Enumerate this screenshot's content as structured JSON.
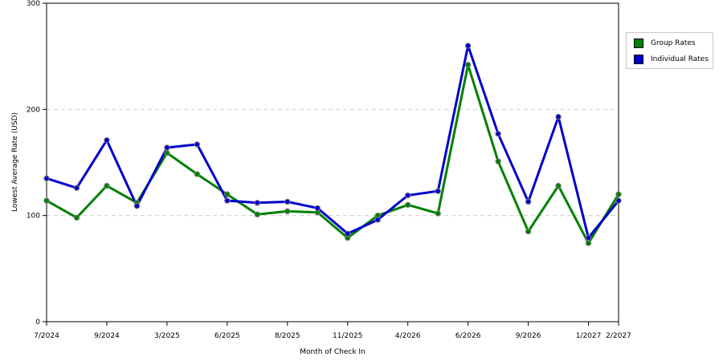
{
  "chart_data": {
    "type": "line",
    "title": "",
    "xlabel": "Month of Check In",
    "ylabel": "Lowest Average Rate (USD)",
    "ylim": [
      0,
      300
    ],
    "yticks": [
      "0",
      "100",
      "200",
      "300"
    ],
    "grid": "horizontal dashed at 100 and 200",
    "legend_position": "top-right, outside plot",
    "x_tick_labels": [
      {
        "index": 0,
        "label": "7/2024"
      },
      {
        "index": 2,
        "label": "9/2024"
      },
      {
        "index": 4,
        "label": "3/2025"
      },
      {
        "index": 6,
        "label": "6/2025"
      },
      {
        "index": 8,
        "label": "8/2025"
      },
      {
        "index": 10,
        "label": "11/2025"
      },
      {
        "index": 12,
        "label": "4/2026"
      },
      {
        "index": 14,
        "label": "6/2026"
      },
      {
        "index": 16,
        "label": "9/2026"
      },
      {
        "index": 18,
        "label": "1/2027"
      },
      {
        "index": 19,
        "label": "2/2027"
      }
    ],
    "point_count": 20,
    "series": [
      {
        "name": "Group Rates",
        "color": "#008000",
        "values": [
          114,
          98,
          128,
          112,
          159,
          139,
          120,
          101,
          104,
          103,
          79,
          100,
          110,
          102,
          242,
          151,
          85,
          128,
          74,
          120
        ]
      },
      {
        "name": "Individual Rates",
        "color": "#0000cc",
        "values": [
          135,
          126,
          171,
          109,
          164,
          167,
          114,
          112,
          113,
          107,
          83,
          96,
          119,
          123,
          260,
          177,
          113,
          193,
          79,
          114
        ]
      }
    ]
  },
  "legend": {
    "items": [
      {
        "label": "Group Rates",
        "color": "#008000"
      },
      {
        "label": "Individual Rates",
        "color": "#0000cc"
      }
    ]
  }
}
